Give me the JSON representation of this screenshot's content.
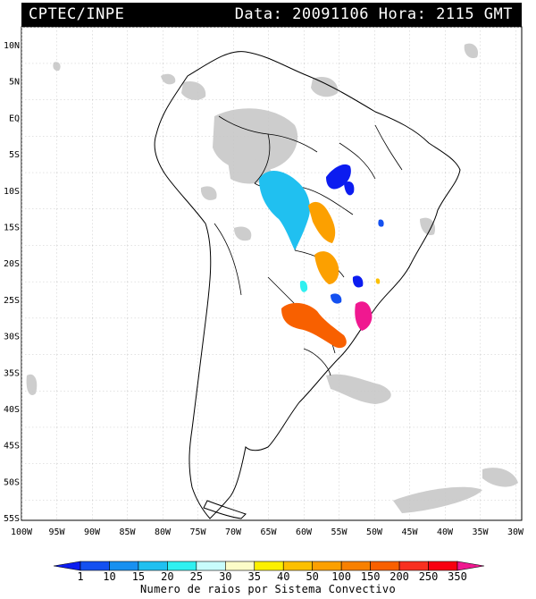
{
  "header": {
    "source": "CPTEC/INPE",
    "datetime": "Data: 20091106 Hora: 2115 GMT"
  },
  "map": {
    "lat_labels": [
      "10N",
      "5N",
      "EQ",
      "5S",
      "10S",
      "15S",
      "20S",
      "25S",
      "30S",
      "35S",
      "40S",
      "45S",
      "50S",
      "55S"
    ],
    "lon_labels": [
      "100W",
      "95W",
      "90W",
      "85W",
      "80W",
      "75W",
      "70W",
      "65W",
      "60W",
      "55W",
      "50W",
      "45W",
      "40W",
      "35W",
      "30W"
    ]
  },
  "colorbar": {
    "labels": [
      "1",
      "10",
      "15",
      "20",
      "25",
      "30",
      "35",
      "40",
      "50",
      "100",
      "150",
      "200",
      "250",
      "350"
    ],
    "colors": [
      "#0c1cf0",
      "#1450f0",
      "#1890f0",
      "#20c0f0",
      "#30f0f0",
      "#c8fcfc",
      "#fcfcc8",
      "#fcf000",
      "#fcc000",
      "#fca000",
      "#f88000",
      "#f86000",
      "#f83020",
      "#f80010",
      "#f01890"
    ],
    "caption": "Numero de raios por Sistema Convectivo"
  }
}
